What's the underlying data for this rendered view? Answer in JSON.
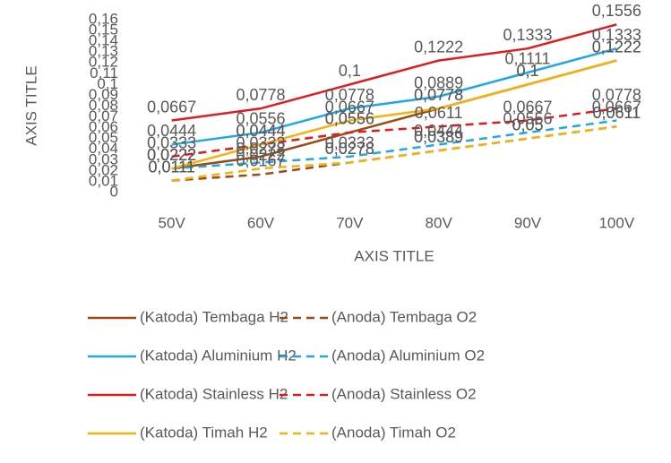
{
  "chart_data": {
    "type": "line",
    "categories": [
      "50V",
      "60V",
      "70V",
      "80V",
      "90V",
      "100V"
    ],
    "x_label": "AXIS TITLE",
    "y_label": "AXIS TITLE",
    "ylim": [
      0,
      0.16
    ],
    "yticks": [
      0,
      {
        "value": 0.01,
        "label": "0,01"
      },
      {
        "value": 0.02,
        "label": "0,02"
      },
      {
        "value": 0.03,
        "label": "0,03"
      },
      {
        "value": 0.04,
        "label": "0,04"
      },
      {
        "value": 0.05,
        "label": "0,05"
      },
      {
        "value": 0.06,
        "label": "0,06"
      },
      {
        "value": 0.07,
        "label": "0,07"
      },
      {
        "value": 0.08,
        "label": "0,08"
      },
      {
        "value": 0.09,
        "label": "0,09"
      },
      {
        "value": 0.1,
        "label": "0,1"
      },
      {
        "value": 0.11,
        "label": "0,11"
      },
      {
        "value": 0.12,
        "label": "0,12"
      },
      {
        "value": 0.13,
        "label": "0,13"
      },
      {
        "value": 0.14,
        "label": "0,14"
      },
      {
        "value": 0.15,
        "label": "0,15"
      },
      {
        "value": 0.16,
        "label": "0,16"
      }
    ],
    "grid": false,
    "legend": "bottom",
    "series": [
      {
        "name": "(Katoda) Tembaga H2",
        "color": "#9e4a12",
        "line_style": "solid",
        "values": [
          0.0222,
          0.0333,
          0.0556,
          0.0778,
          0.1,
          0.1222
        ],
        "value_labels": [
          "0,0222",
          "0,0333",
          "0,0556",
          "0,0778",
          "0,1",
          "0,1222"
        ]
      },
      {
        "name": "(Anoda) Tembaga O2",
        "color": "#9e4a12",
        "line_style": "dashed",
        "values": [
          0.0111,
          0.0167,
          0.0278,
          0.0389,
          0.05,
          0.0611
        ],
        "value_labels": [
          "0,0111",
          "0,0167",
          "0,0278",
          "0,0389",
          "0,05",
          "0,0611"
        ]
      },
      {
        "name": "(Katoda) Aluminium H2",
        "color": "#1ca9e6",
        "line_style": "solid",
        "values": [
          0.0444,
          0.0556,
          0.0778,
          0.0889,
          0.1111,
          0.1333
        ],
        "value_labels": [
          "0,0444",
          "0,0556",
          "0,0778",
          "0,0889",
          "0,1111",
          "0,1333"
        ]
      },
      {
        "name": "(Anoda) Aluminium O2",
        "color": "#1ca9e6",
        "line_style": "dashed",
        "values": [
          0.0222,
          0.0278,
          0.0333,
          0.0444,
          0.0556,
          0.0667
        ],
        "value_labels": [
          "0,0222",
          "0,0278",
          "0,0333",
          "0,0444",
          "0,0556",
          "0,0667"
        ]
      },
      {
        "name": "(Katoda) Stainless H2",
        "color": "#e01b1b",
        "line_style": "solid",
        "values": [
          0.0667,
          0.0778,
          0.1,
          0.1222,
          0.1333,
          0.1556
        ],
        "value_labels": [
          "0,0667",
          "0,0778",
          "0,1",
          "0,1222",
          "0,1333",
          "0,1556"
        ]
      },
      {
        "name": "(Anoda) Stainless O2",
        "color": "#e01b1b",
        "line_style": "dashed",
        "values": [
          0.0333,
          0.0444,
          0.0556,
          0.0611,
          0.0667,
          0.0778
        ],
        "value_labels": [
          "0,0333",
          "0,0444",
          "0,0556",
          "0,0611",
          "0,0667",
          "0,0778"
        ]
      },
      {
        "name": "(Katoda) Timah H2",
        "color": "#f5b10f",
        "line_style": "solid",
        "values": [
          0.0222,
          0.0444,
          0.0667,
          0.0778,
          0.1,
          0.1222
        ],
        "value_labels": [
          "0,0222",
          "0,0444",
          "0,0667",
          "0,0778",
          "0,1",
          "0,1222"
        ]
      },
      {
        "name": "(Anoda) Timah O2",
        "color": "#f5b10f",
        "line_style": "dashed",
        "values": [
          0.0111,
          0.0222,
          0.0278,
          0.0389,
          0.05,
          0.0611
        ],
        "value_labels": [
          "0,0111",
          "0,0222",
          "0,0278",
          "0,0389",
          "0,05",
          "0,0611"
        ]
      }
    ]
  }
}
